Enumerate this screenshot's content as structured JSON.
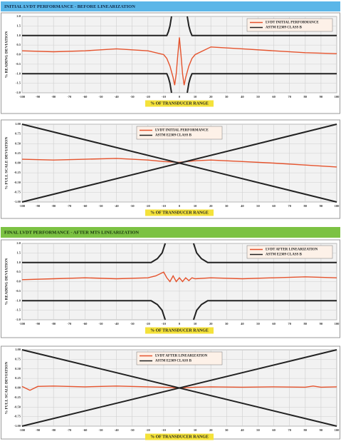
{
  "sections": [
    {
      "title": "INITIAL LVDT PERFORMANCE  -  BEFORE LINEARIZATION"
    },
    {
      "title": "FINAL LVDT PERFORMANCE  -  AFTER MTS LINEARIZATION"
    }
  ],
  "chart_data": [
    {
      "type": "line",
      "xlabel": "% OF TRANSDUCER RANGE",
      "ylabel": "% READING DEVIATION",
      "xlim": [
        -100,
        100
      ],
      "xticks": [
        -100,
        -90,
        -80,
        -70,
        -60,
        -50,
        -40,
        -30,
        -20,
        -10,
        0,
        10,
        20,
        30,
        40,
        50,
        60,
        70,
        80,
        90,
        100
      ],
      "ylim": [
        -2,
        2
      ],
      "yticks": [
        {
          "value": 2,
          "label": "2.0"
        },
        {
          "value": 1.5,
          "label": "1.5"
        },
        {
          "value": 1,
          "label": "1.0"
        },
        {
          "value": 0.5,
          "label": "0.5"
        },
        {
          "value": 0,
          "label": "0.0"
        },
        {
          "value": -0.5,
          "label": "-0.5"
        },
        {
          "value": -1,
          "label": "-1.0"
        },
        {
          "value": -1.5,
          "label": "-1.5"
        },
        {
          "value": -2,
          "label": "-2.0"
        }
      ],
      "grid": true,
      "legend": "upper right",
      "series": [
        {
          "name": "LVDT INITIAL PERFORMANCE",
          "color": "#e5532d",
          "x": [
            -100,
            -80,
            -60,
            -40,
            -20,
            -10,
            -8,
            -6,
            -4,
            -3,
            -2,
            -1,
            0,
            1,
            2,
            3,
            4,
            6,
            8,
            10,
            20,
            40,
            60,
            80,
            100
          ],
          "values": [
            0.2,
            0.15,
            0.2,
            0.3,
            0.2,
            0.0,
            -0.2,
            -0.6,
            -1.2,
            -1.6,
            -1.0,
            0.0,
            0.9,
            0.0,
            -1.0,
            -1.6,
            -1.2,
            -0.6,
            -0.2,
            0.0,
            0.4,
            0.3,
            0.2,
            0.1,
            0.05
          ]
        },
        {
          "name": "ASTM E2309 CLASS B",
          "color": "#222222",
          "x": [
            -100,
            -8,
            -7,
            -6,
            -5,
            0,
            5,
            6,
            7,
            8,
            100,
            0,
            -100,
            -8,
            -7,
            -6,
            -5,
            0,
            5,
            6,
            7,
            8,
            100
          ],
          "values": [
            1,
            1,
            1.2,
            1.5,
            2,
            null,
            2,
            1.5,
            1.2,
            1,
            1,
            null,
            -1,
            -1,
            -1.2,
            -1.5,
            -2,
            null,
            -2,
            -1.5,
            -1.2,
            -1,
            -1
          ]
        }
      ]
    },
    {
      "type": "line",
      "xlabel": "% OF TRANSDUCER RANGE",
      "ylabel": "% FULL SCALE DEVIATION",
      "xlim": [
        -100,
        100
      ],
      "xticks": [
        -100,
        -90,
        -80,
        -70,
        -60,
        -50,
        -40,
        -30,
        -20,
        -10,
        0,
        10,
        20,
        30,
        40,
        50,
        60,
        70,
        80,
        90,
        100
      ],
      "ylim": [
        -1,
        1
      ],
      "yticks": [
        {
          "value": 1,
          "label": "1.00"
        },
        {
          "value": 0.75,
          "label": "0.75"
        },
        {
          "value": 0.5,
          "label": "0.50"
        },
        {
          "value": 0.25,
          "label": "0.25"
        },
        {
          "value": 0,
          "label": "0.00"
        },
        {
          "value": -0.25,
          "label": "-0.25"
        },
        {
          "value": -0.5,
          "label": "-0.50"
        },
        {
          "value": -0.75,
          "label": "-0.75"
        },
        {
          "value": -1,
          "label": "-1.00"
        }
      ],
      "grid": true,
      "legend": "upper center",
      "series": [
        {
          "name": "LVDT INITIAL PERFORMANCE",
          "color": "#e5532d",
          "x": [
            -100,
            -80,
            -60,
            -40,
            -20,
            -10,
            0,
            10,
            20,
            40,
            60,
            80,
            100
          ],
          "values": [
            0.1,
            0.08,
            0.1,
            0.12,
            0.08,
            0.04,
            0.02,
            0.06,
            0.08,
            0.04,
            0.0,
            -0.05,
            -0.1
          ]
        },
        {
          "name": "ASTM E2309 CLASS B",
          "color": "#222222",
          "x": [
            -100,
            100,
            0,
            -100,
            100
          ],
          "values": [
            1,
            -1,
            null,
            -1,
            1
          ]
        }
      ]
    },
    {
      "type": "line",
      "xlabel": "% OF TRANSDUCER RANGE",
      "ylabel": "% READING DEVIATION",
      "xlim": [
        -100,
        100
      ],
      "xticks": [
        -100,
        -90,
        -80,
        -70,
        -60,
        -50,
        -40,
        -30,
        -20,
        -10,
        0,
        10,
        20,
        30,
        40,
        50,
        60,
        70,
        80,
        90,
        100
      ],
      "ylim": [
        -2,
        2
      ],
      "yticks": [
        {
          "value": 2,
          "label": "2.0"
        },
        {
          "value": 1.5,
          "label": "1.5"
        },
        {
          "value": 1,
          "label": "1.0"
        },
        {
          "value": 0.5,
          "label": "0.5"
        },
        {
          "value": 0,
          "label": "0.0"
        },
        {
          "value": -0.5,
          "label": "-0.5"
        },
        {
          "value": -1,
          "label": "-1.0"
        },
        {
          "value": -1.5,
          "label": "-1.5"
        },
        {
          "value": -2,
          "label": "-2.0"
        }
      ],
      "grid": true,
      "legend": "upper right",
      "series": [
        {
          "name": "LVDT AFTER LINEARIZATION",
          "color": "#e5532d",
          "x": [
            -100,
            -80,
            -60,
            -40,
            -20,
            -15,
            -10,
            -8,
            -6,
            -4,
            -2,
            0,
            2,
            4,
            6,
            8,
            10,
            20,
            40,
            60,
            80,
            100
          ],
          "values": [
            0.1,
            0.15,
            0.2,
            0.15,
            0.2,
            0.3,
            0.5,
            0.2,
            0.0,
            0.3,
            0.0,
            0.2,
            0.0,
            0.2,
            0.05,
            0.2,
            0.15,
            0.2,
            0.15,
            0.2,
            0.25,
            0.2
          ]
        },
        {
          "name": "ASTM E2309 CLASS B",
          "color": "#222222",
          "x": [
            -100,
            -18,
            -14,
            -11,
            -9,
            0,
            9,
            11,
            14,
            18,
            100,
            0,
            -100,
            -18,
            -14,
            -11,
            -9,
            0,
            9,
            11,
            14,
            18,
            100
          ],
          "values": [
            1,
            1,
            1.2,
            1.5,
            2,
            null,
            2,
            1.5,
            1.2,
            1,
            1,
            null,
            -1,
            -1,
            -1.2,
            -1.5,
            -2,
            null,
            -2,
            -1.5,
            -1.2,
            -1,
            -1
          ]
        }
      ]
    },
    {
      "type": "line",
      "xlabel": "% OF TRANSDUCER RANGE",
      "ylabel": "% FULL SCALE DEVIATION",
      "xlim": [
        -100,
        100
      ],
      "xticks": [
        -100,
        -90,
        -80,
        -70,
        -60,
        -50,
        -40,
        -30,
        -20,
        -10,
        0,
        10,
        20,
        30,
        40,
        50,
        60,
        70,
        80,
        90,
        100
      ],
      "ylim": [
        -1,
        1
      ],
      "yticks": [
        {
          "value": 1,
          "label": "1.00"
        },
        {
          "value": 0.75,
          "label": "0.75"
        },
        {
          "value": 0.5,
          "label": "0.50"
        },
        {
          "value": 0.25,
          "label": "0.25"
        },
        {
          "value": 0,
          "label": "0.00"
        },
        {
          "value": -0.25,
          "label": "-0.25"
        },
        {
          "value": -0.5,
          "label": "-0.50"
        },
        {
          "value": -0.75,
          "label": "-0.75"
        },
        {
          "value": -1,
          "label": "-1.00"
        }
      ],
      "grid": true,
      "legend": "upper center",
      "series": [
        {
          "name": "LVDT AFTER LINEARIZATION",
          "color": "#e5532d",
          "x": [
            -100,
            -95,
            -90,
            -80,
            -60,
            -40,
            -20,
            -10,
            0,
            10,
            20,
            40,
            60,
            80,
            85,
            90,
            100
          ],
          "values": [
            0.04,
            -0.06,
            0.04,
            0.05,
            0.03,
            0.05,
            0.03,
            0.02,
            0.0,
            0.02,
            0.03,
            0.02,
            0.03,
            0.02,
            0.05,
            0.02,
            0.03
          ]
        },
        {
          "name": "ASTM E2309 CLASS B",
          "color": "#222222",
          "x": [
            -100,
            100,
            0,
            -100,
            100
          ],
          "values": [
            1,
            -1,
            null,
            -1,
            1
          ]
        }
      ]
    }
  ]
}
